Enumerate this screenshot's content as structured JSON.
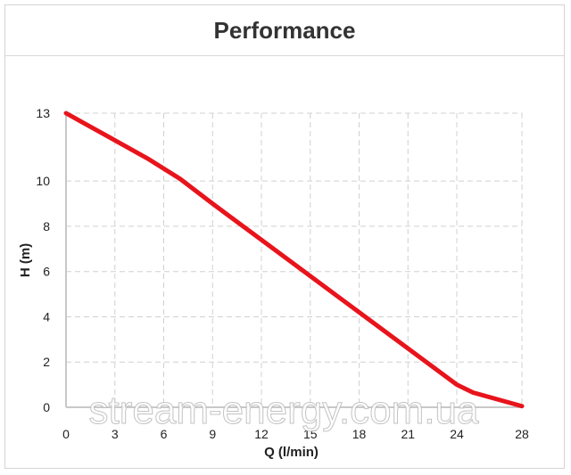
{
  "title": "Performance",
  "watermark": "stream-energy.com.ua",
  "colors": {
    "curve": "#e8141c",
    "grid": "#d0d0d0",
    "axis": "#c8c8c8"
  },
  "chart_data": {
    "type": "line",
    "xlabel": "Q (l/min)",
    "ylabel": "H (m)",
    "x_ticks": [
      0,
      3,
      6,
      9,
      12,
      15,
      18,
      21,
      24,
      28
    ],
    "y_ticks": [
      0,
      2,
      4,
      6,
      8,
      10,
      13
    ],
    "xlim": [
      0,
      28
    ],
    "ylim": [
      0,
      13
    ],
    "grid": true,
    "series": [
      {
        "x": [
          0,
          1,
          3,
          5,
          7,
          9,
          12,
          15,
          18,
          21,
          24,
          25,
          28
        ],
        "y": [
          13,
          12.6,
          11.8,
          11,
          10.1,
          9,
          7.4,
          5.8,
          4.2,
          2.6,
          1,
          0.65,
          0.05
        ]
      }
    ]
  }
}
